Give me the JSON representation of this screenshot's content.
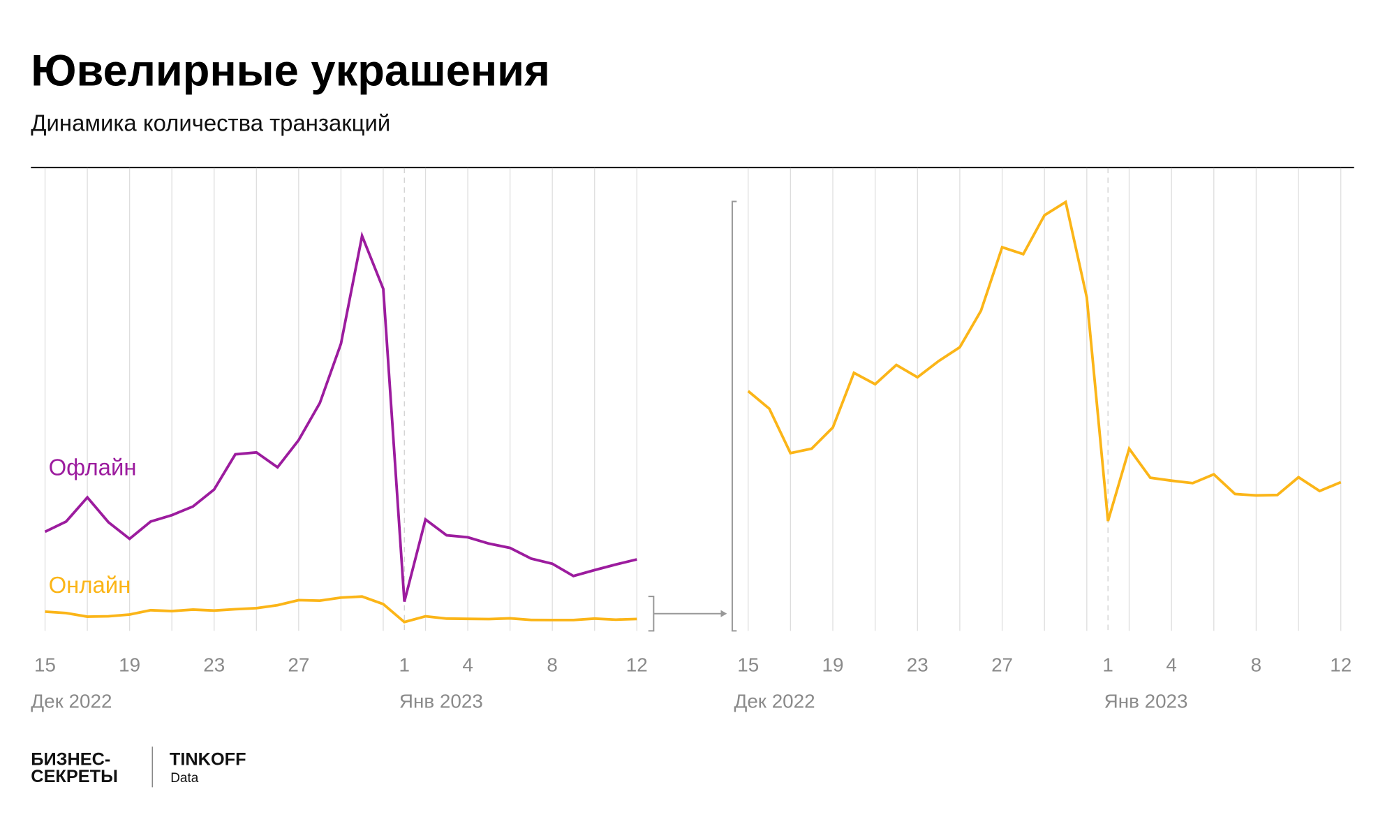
{
  "header": {
    "title": "Ювелирные украшения",
    "subtitle": "Динамика количества транзакций"
  },
  "colors": {
    "offline": "#9c1c9e",
    "online": "#fbb518",
    "grid": "#dddddd",
    "text_muted": "#8a8a8a"
  },
  "chart_data": [
    {
      "type": "line",
      "title": "",
      "x": [
        "2022-12-15",
        "2022-12-16",
        "2022-12-17",
        "2022-12-18",
        "2022-12-19",
        "2022-12-20",
        "2022-12-21",
        "2022-12-22",
        "2022-12-23",
        "2022-12-24",
        "2022-12-25",
        "2022-12-26",
        "2022-12-27",
        "2022-12-28",
        "2022-12-29",
        "2022-12-30",
        "2022-12-31",
        "2023-01-01",
        "2023-01-02",
        "2023-01-03",
        "2023-01-04",
        "2023-01-05",
        "2023-01-06",
        "2023-01-07",
        "2023-01-08",
        "2023-01-09",
        "2023-01-10",
        "2023-01-11",
        "2023-01-12"
      ],
      "x_tick_labels": [
        "15",
        "19",
        "23",
        "27",
        "1",
        "4",
        "8",
        "12"
      ],
      "x_tick_indices": [
        0,
        4,
        8,
        12,
        17,
        20,
        24,
        28
      ],
      "month_labels": [
        {
          "label": "Дек 2022",
          "index": 0
        },
        {
          "label": "Янв 2023",
          "index": 17
        }
      ],
      "ylim": [
        0,
        100
      ],
      "y_axis_shown": false,
      "grid": "vertical",
      "series": [
        {
          "name": "Офлайн",
          "color": "#9c1c9e",
          "values": [
            25.1,
            27.7,
            33.8,
            27.5,
            23.3,
            27.7,
            29.3,
            31.5,
            35.8,
            44.7,
            45.2,
            41.4,
            48.3,
            57.7,
            72.7,
            100,
            86.6,
            7.4,
            28.2,
            24.2,
            23.7,
            22.1,
            21.0,
            18.3,
            17.0,
            13.9,
            15.4,
            16.8,
            18.1
          ]
        },
        {
          "name": "Онлайн",
          "color": "#fbb518",
          "values": [
            4.87,
            4.51,
            3.61,
            3.7,
            4.13,
            5.24,
            5.01,
            5.4,
            5.15,
            5.48,
            5.76,
            6.5,
            7.79,
            7.65,
            8.44,
            8.71,
            6.77,
            2.23,
            3.7,
            3.11,
            3.05,
            3.0,
            3.18,
            2.78,
            2.75,
            2.76,
            3.12,
            2.84,
            3.02
          ]
        }
      ]
    },
    {
      "type": "line",
      "title": "",
      "x": [
        "2022-12-15",
        "2022-12-16",
        "2022-12-17",
        "2022-12-18",
        "2022-12-19",
        "2022-12-20",
        "2022-12-21",
        "2022-12-22",
        "2022-12-23",
        "2022-12-24",
        "2022-12-25",
        "2022-12-26",
        "2022-12-27",
        "2022-12-28",
        "2022-12-29",
        "2022-12-30",
        "2022-12-31",
        "2023-01-01",
        "2023-01-02",
        "2023-01-03",
        "2023-01-04",
        "2023-01-05",
        "2023-01-06",
        "2023-01-07",
        "2023-01-08",
        "2023-01-09",
        "2023-01-10",
        "2023-01-11",
        "2023-01-12"
      ],
      "x_tick_labels": [
        "15",
        "19",
        "23",
        "27",
        "1",
        "4",
        "8",
        "12"
      ],
      "x_tick_indices": [
        0,
        4,
        8,
        12,
        17,
        20,
        24,
        28
      ],
      "month_labels": [
        {
          "label": "Дек 2022",
          "index": 0
        },
        {
          "label": "Янв 2023",
          "index": 17
        }
      ],
      "ylim": [
        0,
        8.72
      ],
      "y_axis_shown": false,
      "grid": "vertical",
      "note_zoom_of": "online series, enlarged",
      "series": [
        {
          "color": "#fbb518",
          "values": [
            4.87,
            4.51,
            3.61,
            3.7,
            4.13,
            5.24,
            5.01,
            5.4,
            5.15,
            5.48,
            5.76,
            6.5,
            7.79,
            7.65,
            8.44,
            8.71,
            6.77,
            2.23,
            3.7,
            3.11,
            3.05,
            3.0,
            3.18,
            2.78,
            2.75,
            2.76,
            3.12,
            2.84,
            3.02
          ]
        }
      ]
    }
  ],
  "footer": {
    "logo_left_line1": "БИЗНЕС-",
    "logo_left_line2": "СЕКРЕТЫ",
    "logo_right": "TINKOFF",
    "logo_right_sub": "Data"
  }
}
